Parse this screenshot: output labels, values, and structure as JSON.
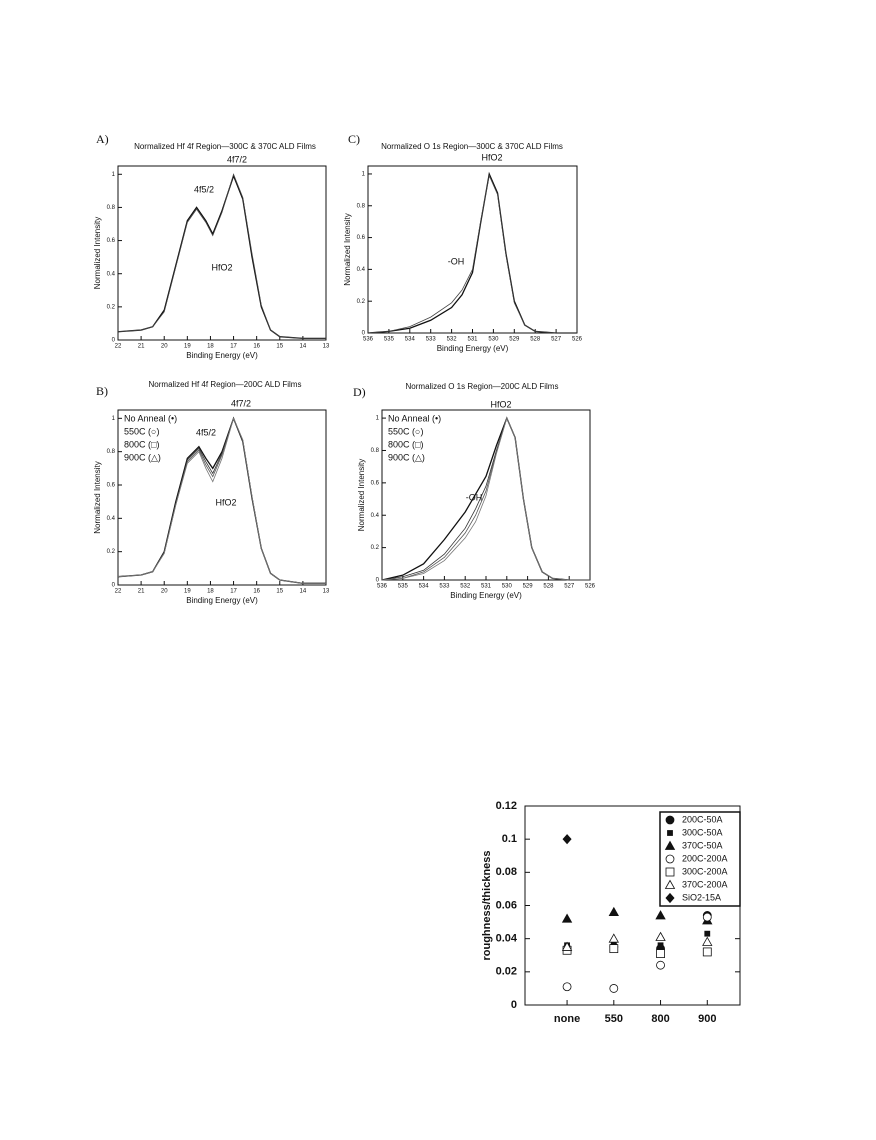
{
  "chart_data": [
    {
      "type": "line",
      "panel": "A)",
      "title": "Normalized Hf 4f Region—300C & 370C ALD Films",
      "x_label": "Binding Energy (eV)",
      "y_label": "Normalized Intensity",
      "annotations": [
        "4f5/2",
        "4f7/2",
        "HfO2"
      ],
      "x": [
        22,
        21,
        20.5,
        20,
        19.5,
        19,
        18.6,
        18.2,
        17.9,
        17.5,
        17.0,
        16.6,
        16.2,
        15.8,
        15.4,
        15,
        14,
        13
      ],
      "series": [
        {
          "color": "#111",
          "values": [
            0.05,
            0.06,
            0.08,
            0.18,
            0.45,
            0.72,
            0.8,
            0.72,
            0.64,
            0.78,
            0.99,
            0.85,
            0.5,
            0.2,
            0.06,
            0.02,
            0.01,
            0.01
          ]
        },
        {
          "color": "#444",
          "values": [
            0.05,
            0.06,
            0.08,
            0.17,
            0.44,
            0.71,
            0.79,
            0.71,
            0.63,
            0.77,
            1.0,
            0.86,
            0.52,
            0.21,
            0.06,
            0.02,
            0.01,
            0.01
          ]
        }
      ],
      "xlim": [
        22,
        13
      ],
      "xticks": [
        22,
        21,
        20,
        19,
        18,
        17,
        16,
        15,
        14,
        13
      ],
      "ylim": [
        0,
        1.05
      ],
      "yticks": [
        0,
        0.2,
        0.4,
        0.6,
        0.8,
        1
      ]
    },
    {
      "type": "line",
      "panel": "C)",
      "title": "Normalized O 1s Region—300C & 370C ALD Films",
      "x_label": "Binding Energy (eV)",
      "y_label": "Normalized Intensity",
      "annotations": [
        "HfO2",
        "-OH"
      ],
      "x": [
        536,
        535,
        534,
        533,
        532,
        531.5,
        531,
        530.6,
        530.2,
        529.8,
        529.4,
        529,
        528.5,
        528,
        527,
        526
      ],
      "series": [
        {
          "color": "#111",
          "values": [
            0,
            0.01,
            0.03,
            0.08,
            0.16,
            0.24,
            0.38,
            0.7,
            1.0,
            0.88,
            0.5,
            0.2,
            0.05,
            0.01,
            0,
            0
          ]
        },
        {
          "color": "#444",
          "values": [
            0,
            0.01,
            0.04,
            0.1,
            0.19,
            0.27,
            0.4,
            0.71,
            0.99,
            0.87,
            0.49,
            0.19,
            0.05,
            0.01,
            0,
            0
          ]
        }
      ],
      "xlim": [
        536,
        526
      ],
      "xticks": [
        536,
        535,
        534,
        533,
        532,
        531,
        530,
        529,
        528,
        527,
        526
      ],
      "ylim": [
        0,
        1.05
      ],
      "yticks": [
        0,
        0.2,
        0.4,
        0.6,
        0.8,
        1
      ]
    },
    {
      "type": "line",
      "panel": "B)",
      "title": "Normalized Hf 4f Region—200C ALD Films",
      "x_label": "Binding Energy (eV)",
      "y_label": "Normalized Intensity",
      "annotations": [
        "4f5/2",
        "4f7/2",
        "HfO2"
      ],
      "x": [
        22,
        21,
        20.5,
        20,
        19.5,
        19,
        18.5,
        18.2,
        17.9,
        17.5,
        17.0,
        16.6,
        16.2,
        15.8,
        15.4,
        15,
        14,
        13
      ],
      "series": [
        {
          "name": "No Anneal (•)",
          "color": "#111",
          "values": [
            0.05,
            0.06,
            0.08,
            0.2,
            0.5,
            0.76,
            0.83,
            0.76,
            0.7,
            0.8,
            1.0,
            0.86,
            0.52,
            0.22,
            0.07,
            0.03,
            0.01,
            0.01
          ]
        },
        {
          "name": "550C (○)",
          "color": "#333",
          "values": [
            0.05,
            0.06,
            0.08,
            0.2,
            0.49,
            0.75,
            0.82,
            0.74,
            0.67,
            0.79,
            1.0,
            0.86,
            0.52,
            0.22,
            0.07,
            0.03,
            0.01,
            0.01
          ]
        },
        {
          "name": "800C (□)",
          "color": "#555",
          "values": [
            0.05,
            0.06,
            0.08,
            0.19,
            0.48,
            0.74,
            0.81,
            0.72,
            0.65,
            0.78,
            1.0,
            0.87,
            0.53,
            0.22,
            0.07,
            0.03,
            0.01,
            0.01
          ]
        },
        {
          "name": "900C (△)",
          "color": "#777",
          "values": [
            0.05,
            0.06,
            0.08,
            0.19,
            0.48,
            0.73,
            0.8,
            0.7,
            0.62,
            0.76,
            1.0,
            0.87,
            0.53,
            0.22,
            0.07,
            0.03,
            0.01,
            0.01
          ]
        }
      ],
      "xlim": [
        22,
        13
      ],
      "xticks": [
        22,
        21,
        20,
        19,
        18,
        17,
        16,
        15,
        14,
        13
      ],
      "ylim": [
        0,
        1.05
      ],
      "yticks": [
        0,
        0.2,
        0.4,
        0.6,
        0.8,
        1
      ]
    },
    {
      "type": "line",
      "panel": "D)",
      "title": "Normalized O 1s Region—200C ALD Films",
      "x_label": "Binding Energy (eV)",
      "y_label": "Normalized Intensity",
      "annotations": [
        "HfO2",
        "-OH"
      ],
      "x": [
        536,
        535,
        534,
        533,
        532,
        531.5,
        531,
        530.5,
        530,
        529.6,
        529.2,
        528.8,
        528.3,
        527.8,
        527,
        526
      ],
      "series": [
        {
          "name": "No Anneal (•)",
          "color": "#111",
          "values": [
            0,
            0.03,
            0.1,
            0.25,
            0.42,
            0.53,
            0.64,
            0.83,
            1.0,
            0.88,
            0.5,
            0.2,
            0.05,
            0.01,
            0,
            0
          ]
        },
        {
          "name": "550C (○)",
          "color": "#333",
          "values": [
            0,
            0.02,
            0.06,
            0.16,
            0.32,
            0.44,
            0.58,
            0.8,
            1.0,
            0.88,
            0.5,
            0.2,
            0.05,
            0.01,
            0,
            0
          ]
        },
        {
          "name": "800C (□)",
          "color": "#555",
          "values": [
            0,
            0.01,
            0.05,
            0.14,
            0.29,
            0.4,
            0.55,
            0.79,
            1.0,
            0.88,
            0.5,
            0.2,
            0.05,
            0.01,
            0,
            0
          ]
        },
        {
          "name": "900C (△)",
          "color": "#777",
          "values": [
            0,
            0.01,
            0.04,
            0.12,
            0.26,
            0.36,
            0.52,
            0.78,
            1.0,
            0.88,
            0.5,
            0.2,
            0.05,
            0.01,
            0,
            0
          ]
        }
      ],
      "xlim": [
        536,
        526
      ],
      "xticks": [
        536,
        535,
        534,
        533,
        532,
        531,
        530,
        529,
        528,
        527,
        526
      ],
      "ylim": [
        0,
        1.05
      ],
      "yticks": [
        0,
        0.2,
        0.4,
        0.6,
        0.8,
        1
      ]
    },
    {
      "type": "scatter",
      "y_label": "roughness/thickness",
      "categories": [
        "none",
        "550",
        "800",
        "900"
      ],
      "series": [
        {
          "name": "200C-50A",
          "marker": "circle-filled",
          "values": [
            0.034,
            0.035,
            0.034,
            0.054
          ]
        },
        {
          "name": "300C-50A",
          "marker": "square-filled",
          "values": [
            0.036,
            0.036,
            0.036,
            0.043
          ]
        },
        {
          "name": "370C-50A",
          "marker": "triangle-filled",
          "values": [
            0.052,
            0.056,
            0.054,
            0.051
          ]
        },
        {
          "name": "200C-200A",
          "marker": "circle-open",
          "values": [
            0.011,
            0.01,
            0.024,
            0.053
          ]
        },
        {
          "name": "300C-200A",
          "marker": "square-open",
          "values": [
            0.033,
            0.034,
            0.031,
            0.032
          ]
        },
        {
          "name": "370C-200A",
          "marker": "triangle-open",
          "values": [
            0.035,
            0.04,
            0.041,
            0.038
          ]
        },
        {
          "name": "SiO2-15A",
          "marker": "diamond-filled",
          "values": [
            0.1,
            null,
            null,
            null
          ]
        }
      ],
      "ylim": [
        0,
        0.12
      ],
      "yticks": [
        0,
        0.02,
        0.04,
        0.06,
        0.08,
        0.1,
        0.12
      ]
    }
  ]
}
